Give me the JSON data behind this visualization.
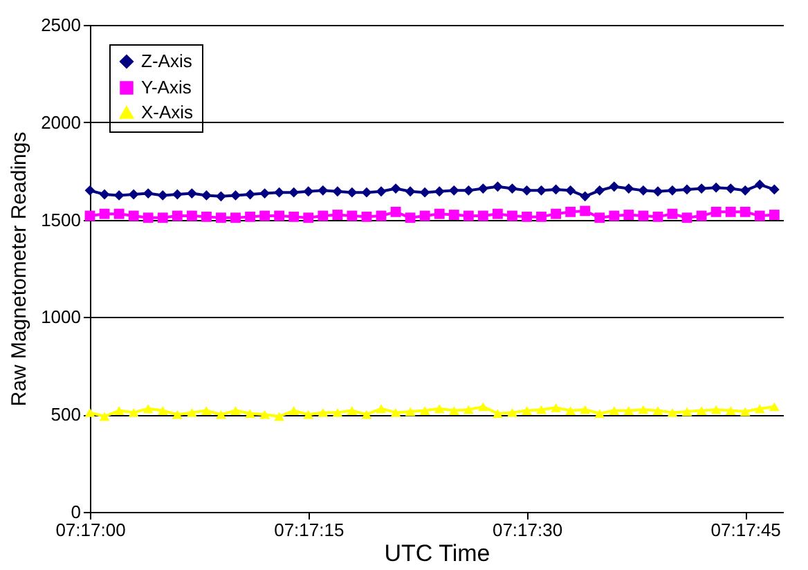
{
  "chart_data": {
    "type": "line",
    "xlabel": "UTC Time",
    "ylabel": "Raw Magnetometer Readings",
    "x": [
      7.283333,
      7.283611,
      7.283889,
      7.284167,
      7.284444,
      7.284722,
      7.285,
      7.285278,
      7.285556,
      7.285833,
      7.286111,
      7.286389,
      7.286667,
      7.286944,
      7.287222,
      7.2875,
      7.287778,
      7.288056,
      7.288333,
      7.288611,
      7.288889,
      7.289167,
      7.289444,
      7.289722,
      7.29,
      7.290278,
      7.290556,
      7.290833,
      7.291111,
      7.291389,
      7.291667,
      7.291944,
      7.292222,
      7.2925,
      7.292778,
      7.293056,
      7.293333,
      7.293611,
      7.293889,
      7.294167,
      7.294444,
      7.294722,
      7.295,
      7.295278,
      7.295556,
      7.295833,
      7.296111,
      7.296389
    ],
    "xlim": [
      7.283333,
      7.296556
    ],
    "xticks": [
      {
        "value": 7.283333,
        "label": "07:17:00"
      },
      {
        "value": 7.2875,
        "label": "07:17:15"
      },
      {
        "value": 7.291667,
        "label": "07:17:30"
      },
      {
        "value": 7.295833,
        "label": "07:17:45"
      }
    ],
    "ylim": [
      0,
      2500
    ],
    "yticks": [
      0,
      500,
      1000,
      1500,
      2000,
      2500
    ],
    "grid": "y",
    "legend": "top left",
    "series": [
      {
        "name": "Z-Axis",
        "color": "#000080",
        "marker": "diamond",
        "values": [
          1650,
          1630,
          1625,
          1630,
          1635,
          1625,
          1630,
          1635,
          1625,
          1620,
          1625,
          1630,
          1635,
          1640,
          1640,
          1645,
          1650,
          1645,
          1640,
          1640,
          1645,
          1660,
          1645,
          1640,
          1645,
          1650,
          1650,
          1660,
          1670,
          1660,
          1650,
          1650,
          1655,
          1650,
          1620,
          1650,
          1670,
          1660,
          1650,
          1645,
          1650,
          1655,
          1660,
          1665,
          1660,
          1650,
          1680,
          1655
        ]
      },
      {
        "name": "Y-Axis",
        "color": "#ff00ff",
        "marker": "square",
        "values": [
          1520,
          1530,
          1530,
          1520,
          1510,
          1510,
          1520,
          1520,
          1515,
          1510,
          1510,
          1515,
          1520,
          1520,
          1515,
          1510,
          1520,
          1525,
          1520,
          1515,
          1520,
          1540,
          1510,
          1520,
          1530,
          1525,
          1520,
          1520,
          1530,
          1520,
          1515,
          1515,
          1530,
          1540,
          1545,
          1510,
          1520,
          1525,
          1520,
          1515,
          1530,
          1510,
          1520,
          1540,
          1540,
          1540,
          1520,
          1525
        ]
      },
      {
        "name": "X-Axis",
        "color": "#ffff00",
        "marker": "triangle",
        "values": [
          510,
          490,
          520,
          510,
          530,
          520,
          500,
          510,
          520,
          500,
          520,
          505,
          500,
          490,
          520,
          500,
          510,
          510,
          520,
          500,
          530,
          510,
          515,
          520,
          530,
          520,
          525,
          540,
          505,
          510,
          520,
          525,
          535,
          520,
          525,
          505,
          520,
          520,
          525,
          520,
          510,
          515,
          520,
          525,
          520,
          515,
          530,
          540
        ]
      }
    ]
  }
}
